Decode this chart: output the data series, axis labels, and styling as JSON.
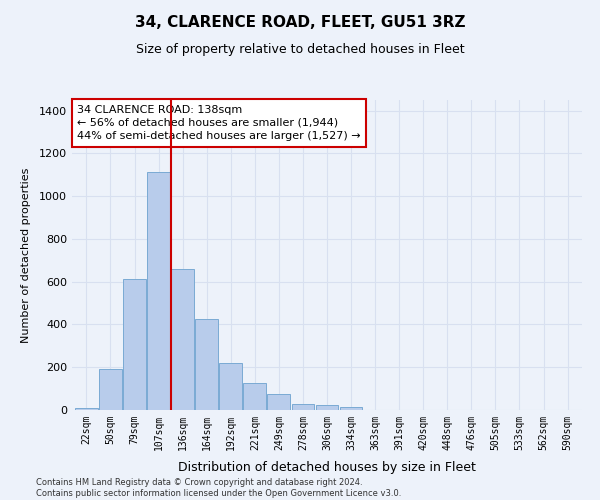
{
  "title": "34, CLARENCE ROAD, FLEET, GU51 3RZ",
  "subtitle": "Size of property relative to detached houses in Fleet",
  "xlabel": "Distribution of detached houses by size in Fleet",
  "ylabel": "Number of detached properties",
  "categories": [
    "22sqm",
    "50sqm",
    "79sqm",
    "107sqm",
    "136sqm",
    "164sqm",
    "192sqm",
    "221sqm",
    "249sqm",
    "278sqm",
    "306sqm",
    "334sqm",
    "363sqm",
    "391sqm",
    "420sqm",
    "448sqm",
    "476sqm",
    "505sqm",
    "533sqm",
    "562sqm",
    "590sqm"
  ],
  "values": [
    10,
    190,
    615,
    1115,
    660,
    425,
    220,
    125,
    75,
    30,
    25,
    15,
    0,
    0,
    0,
    0,
    0,
    0,
    0,
    0,
    0
  ],
  "bar_color": "#b8cceb",
  "bar_edge_color": "#7aaad4",
  "property_line_x": 3.5,
  "property_line_color": "#cc0000",
  "annotation_text": "34 CLARENCE ROAD: 138sqm\n← 56% of detached houses are smaller (1,944)\n44% of semi-detached houses are larger (1,527) →",
  "annotation_box_color": "#cc0000",
  "ylim": [
    0,
    1450
  ],
  "yticks": [
    0,
    200,
    400,
    600,
    800,
    1000,
    1200,
    1400
  ],
  "background_color": "#edf2fa",
  "grid_color": "#d8e0f0",
  "footer": "Contains HM Land Registry data © Crown copyright and database right 2024.\nContains public sector information licensed under the Open Government Licence v3.0."
}
